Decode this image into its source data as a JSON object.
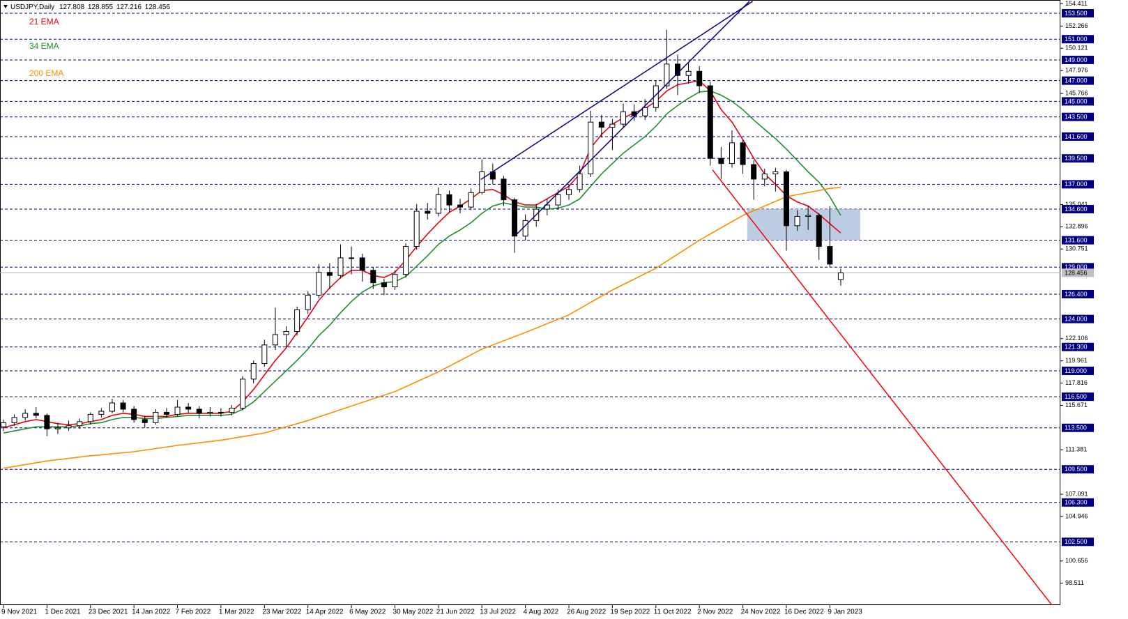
{
  "chart_data": {
    "type": "candlestick",
    "title": "USDJPY,Daily",
    "xlim": [
      -0.32,
      97.2
    ],
    "ylim": [
      96.4,
      154.78
    ],
    "xticks": [
      {
        "value": 0,
        "label": "9 Nov 2021"
      },
      {
        "value": 4,
        "label": "1 Dec 2021"
      },
      {
        "value": 8,
        "label": "23 Dec 2021"
      },
      {
        "value": 12,
        "label": "14 Jan 2022"
      },
      {
        "value": 16,
        "label": "7 Feb 2022"
      },
      {
        "value": 20,
        "label": "1 Mar 2022"
      },
      {
        "value": 24,
        "label": "23 Mar 2022"
      },
      {
        "value": 28,
        "label": "14 Apr 2022"
      },
      {
        "value": 32,
        "label": "6 May 2022"
      },
      {
        "value": 36,
        "label": "30 May 2022"
      },
      {
        "value": 40,
        "label": "21 Jun 2022"
      },
      {
        "value": 44,
        "label": "13 Jul 2022"
      },
      {
        "value": 48,
        "label": "4 Aug 2022"
      },
      {
        "value": 52,
        "label": "26 Aug 2022"
      },
      {
        "value": 56,
        "label": "19 Sep 2022"
      },
      {
        "value": 60,
        "label": "11 Oct 2022"
      },
      {
        "value": 64,
        "label": "2 Nov 2022"
      },
      {
        "value": 68,
        "label": "24 Nov 2022"
      },
      {
        "value": 72,
        "label": "16 Dec 2022"
      },
      {
        "value": 76,
        "label": "9 Jan 2023"
      }
    ],
    "yticks": [
      154.411,
      152.266,
      150.121,
      147.976,
      145.766,
      135.041,
      132.896,
      130.751,
      122.106,
      119.961,
      117.816,
      115.671,
      111.381,
      107.091,
      104.946,
      100.656,
      98.511
    ],
    "level_color": "#000080",
    "levels": [
      {
        "value": 153.5,
        "label": "153.500"
      },
      {
        "value": 151,
        "label": "151.000"
      },
      {
        "value": 149,
        "label": "149.000"
      },
      {
        "value": 147,
        "label": "147.000"
      },
      {
        "value": 145,
        "label": "145.000"
      },
      {
        "value": 143.5,
        "label": "143.500"
      },
      {
        "value": 141.6,
        "label": "141.600"
      },
      {
        "value": 139.5,
        "label": "139.500"
      },
      {
        "value": 137,
        "label": "137.000"
      },
      {
        "value": 134.6,
        "label": "134.600"
      },
      {
        "value": 131.6,
        "label": "131.600"
      },
      {
        "value": 129,
        "label": "129.000"
      },
      {
        "value": 126.4,
        "label": "126.400"
      },
      {
        "value": 124,
        "label": "124.000"
      },
      {
        "value": 121.3,
        "label": "121.300"
      },
      {
        "value": 119,
        "label": "119.000"
      },
      {
        "value": 116.5,
        "label": "116.500"
      },
      {
        "value": 113.5,
        "label": "113.500"
      },
      {
        "value": 109.5,
        "label": "109.500"
      },
      {
        "value": 106.3,
        "label": "106.300"
      },
      {
        "value": 102.5,
        "label": "102.500"
      }
    ],
    "ohlc": {
      "open": [
        113.6,
        114.0,
        114.5,
        114.9,
        114.7,
        113.4,
        113.5,
        113.7,
        114.1,
        114.8,
        115.1,
        115.9,
        115.3,
        114.3,
        114.0,
        115.0,
        114.8,
        115.5,
        115.3,
        114.9,
        115.0,
        115.0,
        115.4,
        118.2,
        119.7,
        121.5,
        122.5,
        122.8,
        124.9,
        126.3,
        128.5,
        128.2,
        129.9,
        129.9,
        128.7,
        127.5,
        127.1,
        128.3,
        131.0,
        134.4,
        134.2,
        136.0,
        135.0,
        134.8,
        136.2,
        138.2,
        137.5,
        135.5,
        132.0,
        133.5,
        134.6,
        135.0,
        136.0,
        136.5,
        138.0,
        143.0,
        142.5,
        142.8,
        144.0,
        143.6,
        144.4,
        146.5,
        148.6,
        147.5,
        147.9,
        146.5,
        139.5,
        139.0,
        141.0,
        138.9,
        137.5,
        138.0,
        138.2,
        133.0,
        133.9,
        134.0,
        131.0,
        127.808
      ],
      "high": [
        114.3,
        114.8,
        115.3,
        115.5,
        114.9,
        114.0,
        114.2,
        114.4,
        115.0,
        115.4,
        116.3,
        116.2,
        115.6,
        114.6,
        115.3,
        115.4,
        116.2,
        115.9,
        115.6,
        115.5,
        115.4,
        115.7,
        118.5,
        120.0,
        122.0,
        125.1,
        123.3,
        125.2,
        126.7,
        129.3,
        129.4,
        131.2,
        131.0,
        130.3,
        129.0,
        127.9,
        128.7,
        131.3,
        135.1,
        135.2,
        136.7,
        136.4,
        135.6,
        136.6,
        139.4,
        139.0,
        137.8,
        135.7,
        134.1,
        135.1,
        135.6,
        136.5,
        137.0,
        138.8,
        144.1,
        143.7,
        143.3,
        144.8,
        144.7,
        145.2,
        147.0,
        151.9,
        149.5,
        148.8,
        148.4,
        146.9,
        140.6,
        142.2,
        141.3,
        139.3,
        138.5,
        138.6,
        138.4,
        134.5,
        134.9,
        134.2,
        134.9,
        128.855
      ],
      "low": [
        113.2,
        113.7,
        114.2,
        114.4,
        112.7,
        112.9,
        113.2,
        113.4,
        113.8,
        114.5,
        114.9,
        115.0,
        114.0,
        113.5,
        113.8,
        114.5,
        114.6,
        114.9,
        114.4,
        114.6,
        114.6,
        114.7,
        115.2,
        117.8,
        119.4,
        121.0,
        121.3,
        122.4,
        124.5,
        126.0,
        126.9,
        127.9,
        128.3,
        127.6,
        126.9,
        126.3,
        126.8,
        128.0,
        130.7,
        133.6,
        133.9,
        134.3,
        134.2,
        134.5,
        136.0,
        137.0,
        134.9,
        130.4,
        131.6,
        132.9,
        134.0,
        134.6,
        135.5,
        136.2,
        137.7,
        141.5,
        140.3,
        142.4,
        143.1,
        143.2,
        144.0,
        146.2,
        145.6,
        146.7,
        145.8,
        138.8,
        137.5,
        138.6,
        138.0,
        135.5,
        136.8,
        136.3,
        130.6,
        132.5,
        132.6,
        129.7,
        129.0,
        127.216
      ],
      "close": [
        114.0,
        114.5,
        114.9,
        114.7,
        113.4,
        113.5,
        113.7,
        114.1,
        114.8,
        115.1,
        115.9,
        115.3,
        114.3,
        114.0,
        115.0,
        114.8,
        115.5,
        115.3,
        114.9,
        115.0,
        115.0,
        115.4,
        118.2,
        119.7,
        121.5,
        122.5,
        122.8,
        124.9,
        126.3,
        128.5,
        128.2,
        129.9,
        129.9,
        128.7,
        127.5,
        127.1,
        128.3,
        131.0,
        134.4,
        134.2,
        136.0,
        135.0,
        134.8,
        136.2,
        138.2,
        137.5,
        135.5,
        132.0,
        133.5,
        134.6,
        135.0,
        136.0,
        136.5,
        138.0,
        143.0,
        142.5,
        142.8,
        144.0,
        143.6,
        144.4,
        146.5,
        148.6,
        147.5,
        147.9,
        146.5,
        139.5,
        139.0,
        141.0,
        138.9,
        137.5,
        138.0,
        138.2,
        133.0,
        133.9,
        134.0,
        131.0,
        129.3,
        128.456
      ]
    },
    "series": [
      {
        "name": "21 EMA",
        "color": "#e8000b",
        "values": [
          113.5,
          113.8,
          114.1,
          114.3,
          114.1,
          113.9,
          113.8,
          113.9,
          114.1,
          114.3,
          114.7,
          114.9,
          114.8,
          114.6,
          114.6,
          114.6,
          114.8,
          114.9,
          114.9,
          114.9,
          114.9,
          115.1,
          116.0,
          117.2,
          118.6,
          120.0,
          121.2,
          122.7,
          124.2,
          125.8,
          127.0,
          128.0,
          128.7,
          128.7,
          128.2,
          128.0,
          128.5,
          129.7,
          131.0,
          132.2,
          133.3,
          134.3,
          134.9,
          135.6,
          136.4,
          136.5,
          136.0,
          135.3,
          135.0,
          135.0,
          135.6,
          136.2,
          136.8,
          138.0,
          140.5,
          141.8,
          142.8,
          143.4,
          143.9,
          144.3,
          145.0,
          146.0,
          146.6,
          146.8,
          147.0,
          146.0,
          144.2,
          143.0,
          141.3,
          139.5,
          138.0,
          137.0,
          135.9,
          135.3,
          134.9,
          134.1,
          133.2,
          132.3
        ]
      },
      {
        "name": "34 EMA",
        "color": "#1f8f2a",
        "values": [
          113.0,
          113.2,
          113.4,
          113.6,
          113.6,
          113.6,
          113.6,
          113.7,
          113.9,
          114.0,
          114.3,
          114.5,
          114.5,
          114.4,
          114.4,
          114.5,
          114.6,
          114.7,
          114.7,
          114.7,
          114.7,
          114.8,
          115.3,
          116.0,
          117.0,
          118.0,
          119.0,
          120.0,
          121.1,
          122.4,
          123.4,
          124.6,
          125.7,
          126.6,
          127.2,
          127.5,
          127.6,
          128.1,
          129.1,
          130.1,
          131.2,
          132.0,
          132.6,
          133.3,
          134.2,
          134.9,
          135.2,
          135.0,
          134.8,
          134.8,
          134.6,
          134.7,
          135.0,
          135.6,
          136.8,
          138.0,
          139.0,
          140.0,
          140.8,
          141.6,
          142.6,
          143.8,
          144.6,
          145.3,
          145.9,
          146.0,
          145.6,
          145.0,
          144.2,
          143.2,
          142.3,
          141.4,
          140.4,
          139.3,
          138.2,
          137.2,
          135.8,
          134.0
        ]
      },
      {
        "name": "200 EMA",
        "color": "#ff8c00",
        "x": [
          0,
          4,
          8,
          12,
          16,
          20,
          24,
          28,
          32,
          36,
          40,
          44,
          48,
          52,
          56,
          60,
          64,
          68,
          72,
          76,
          77
        ],
        "values": [
          109.6,
          110.3,
          110.8,
          111.2,
          111.8,
          112.3,
          113.0,
          114.2,
          115.6,
          117.0,
          118.9,
          121.1,
          122.7,
          124.4,
          126.8,
          128.9,
          131.6,
          134.0,
          135.8,
          136.6,
          136.7
        ]
      }
    ],
    "trendlines": [
      {
        "color": "#00008b",
        "x": [
          43.9,
          68.9
        ],
        "y": [
          137.46,
          154.65
        ]
      },
      {
        "color": "#00008b",
        "x": [
          47.1,
          68.6
        ],
        "y": [
          132.07,
          154.65
        ]
      },
      {
        "color": "#ff0000",
        "x": [
          65.2,
          96.5
        ],
        "y": [
          138.4,
          96.29
        ]
      }
    ],
    "zone": {
      "color": "#b0c4de",
      "x": [
        68.4,
        78.8
      ],
      "y": [
        131.6,
        134.6
      ]
    }
  }
}
